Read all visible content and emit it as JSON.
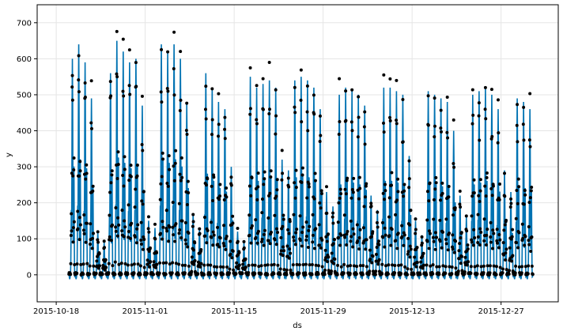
{
  "chart_data": {
    "type": "line",
    "xlabel": "ds",
    "ylabel": "y",
    "x_range": [
      "2015-10-15",
      "2016-01-05"
    ],
    "ylim": [
      -75,
      750
    ],
    "x_tick_labels": [
      "2015-10-18",
      "2015-11-01",
      "2015-11-15",
      "2015-11-29",
      "2015-12-13",
      "2015-12-27"
    ],
    "y_tick_labels": [
      "0",
      "100",
      "200",
      "300",
      "400",
      "500",
      "600",
      "700"
    ],
    "y_ticks": [
      0,
      100,
      200,
      300,
      400,
      500,
      600,
      700
    ],
    "grid": true,
    "series": [
      {
        "kind": "observed-points",
        "color": "#000000"
      },
      {
        "kind": "forecast-line",
        "color": "#0072B2"
      }
    ],
    "time_start": "2015-10-20",
    "time_end": "2016-01-01",
    "daily_peaks": [
      600,
      640,
      590,
      490,
      120,
      90,
      560,
      650,
      620,
      590,
      600,
      470,
      150,
      130,
      640,
      620,
      640,
      600,
      480,
      170,
      130,
      560,
      520,
      480,
      460,
      300,
      120,
      90,
      550,
      520,
      530,
      540,
      520,
      320,
      290,
      540,
      550,
      540,
      520,
      460,
      230,
      190,
      500,
      520,
      510,
      500,
      470,
      220,
      180,
      520,
      520,
      510,
      500,
      330,
      150,
      110,
      510,
      500,
      490,
      480,
      400,
      220,
      160,
      500,
      510,
      520,
      500,
      460,
      290,
      230,
      490,
      480,
      460
    ]
  }
}
